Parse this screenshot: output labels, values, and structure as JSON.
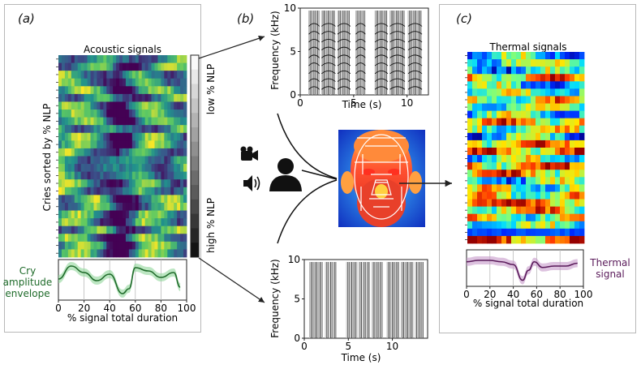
{
  "panel_a": {
    "label": "(a)",
    "heatmap_title": "Acoustic signals",
    "y_label": "Cries sorted by % NLP",
    "colorbar_low": "low % NLP",
    "colorbar_high": "high % NLP",
    "envelope_label_line1": "Cry",
    "envelope_label_line2": "amplitude",
    "envelope_label_line3": "envelope",
    "x_label": "% signal total duration",
    "envelope_color": "#1f6b2a",
    "envelope_fill": "#8fd69a"
  },
  "panel_b": {
    "label": "(b)",
    "spectrogram_top": {
      "y_label": "Frequency (kHz)",
      "x_label": "Time (s)",
      "yticks": [
        "0",
        "5",
        "10"
      ],
      "xticks": [
        "0",
        "5",
        "10"
      ]
    },
    "spectrogram_bottom": {
      "y_label": "Frequency (kHz)",
      "x_label": "Time (s)",
      "yticks": [
        "0",
        "5",
        "10"
      ],
      "xticks": [
        "0",
        "5",
        "10"
      ]
    },
    "icons": [
      "video-camera-icon",
      "speaker-icon",
      "person-icon"
    ]
  },
  "panel_c": {
    "label": "(c)",
    "heatmap_title": "Thermal signals",
    "signal_label_line1": "Thermal",
    "signal_label_line2": "signal",
    "x_label": "% signal total duration",
    "signal_color": "#5a1a5a",
    "signal_fill": "#c79ac9"
  },
  "chart_data": [
    {
      "type": "line",
      "id": "cry-amplitude-envelope",
      "x": [
        0,
        10,
        20,
        30,
        40,
        50,
        55,
        60,
        70,
        80,
        90,
        95
      ],
      "y_relative": [
        0.55,
        0.95,
        0.75,
        0.5,
        0.7,
        0.1,
        0.25,
        0.9,
        0.8,
        0.6,
        0.75,
        0.3
      ],
      "xticks": [
        "0",
        "20",
        "40",
        "60",
        "80",
        "100"
      ],
      "xlim": [
        0,
        100
      ],
      "xlabel": "% signal total duration"
    },
    {
      "type": "line",
      "id": "thermal-signal",
      "x": [
        0,
        10,
        20,
        30,
        40,
        48,
        53,
        58,
        65,
        75,
        85,
        95
      ],
      "y_relative": [
        0.75,
        0.8,
        0.8,
        0.75,
        0.65,
        0.1,
        0.45,
        0.75,
        0.55,
        0.6,
        0.6,
        0.7
      ],
      "xticks": [
        "0",
        "20",
        "40",
        "60",
        "80",
        "100"
      ],
      "xlim": [
        0,
        100
      ],
      "xlabel": "% signal total duration"
    },
    {
      "type": "heatmap",
      "id": "acoustic-heatmap",
      "title": "Acoustic signals",
      "colormap": "viridis"
    },
    {
      "type": "heatmap",
      "id": "thermal-heatmap",
      "title": "Thermal signals",
      "colormap": "jet"
    }
  ]
}
